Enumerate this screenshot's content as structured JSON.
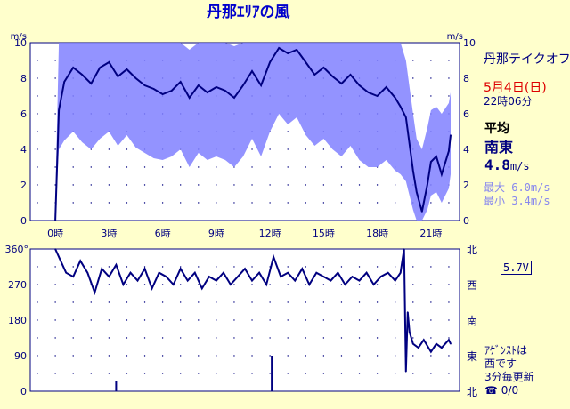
{
  "title": "丹那ｴﾘｱの風",
  "site_name": "丹那テイクオフ",
  "date": "5月4日(日)",
  "time": "22時06分",
  "average": {
    "label": "平均",
    "direction": "南東",
    "speed_value": "4.8",
    "speed_unit": "m/s"
  },
  "max_text": "最大 6.0m/s",
  "min_text": "最小 3.4m/s",
  "battery": "5.7V",
  "announce": {
    "line1": "ｱｹﾞﾝｽﾄは",
    "line2": "西です",
    "line3": "3分毎更新",
    "line4": "☎ 0/0"
  },
  "colors": {
    "avg_line": "#000080",
    "gust_band": "#8080ff",
    "grid": "#000080",
    "background": "#ffffcc"
  },
  "chart_data": [
    {
      "type": "line",
      "unit_left": "m/s",
      "unit_right": "m/s",
      "ylim": [
        0,
        10
      ],
      "y_ticks": [
        "0",
        "2",
        "4",
        "6",
        "8",
        "10"
      ],
      "x_ticks": [
        "0時",
        "3時",
        "6時",
        "9時",
        "12時",
        "15時",
        "18時",
        "21時"
      ],
      "x_tick_hours": [
        0,
        3,
        6,
        9,
        12,
        15,
        18,
        21
      ],
      "xlim_hours": [
        -1.4,
        22.6
      ],
      "series": [
        {
          "role": "average",
          "x": [
            0,
            0.2,
            0.5,
            1,
            1.5,
            2,
            2.5,
            3,
            3.5,
            4,
            4.5,
            5,
            5.5,
            6,
            6.5,
            7,
            7.5,
            8,
            8.5,
            9,
            9.5,
            10,
            10.5,
            11,
            11.5,
            12,
            12.5,
            13,
            13.5,
            14,
            14.5,
            15,
            15.5,
            16,
            16.5,
            17,
            17.5,
            18,
            18.5,
            19,
            19.3,
            19.6,
            20,
            20.2,
            20.5,
            20.8,
            21,
            21.3,
            21.6,
            22,
            22.1
          ],
          "y": [
            0,
            6.2,
            7.8,
            8.6,
            8.2,
            7.7,
            8.6,
            8.9,
            8.1,
            8.5,
            8,
            7.6,
            7.4,
            7.1,
            7.3,
            7.8,
            6.9,
            7.6,
            7.2,
            7.5,
            7.3,
            6.9,
            7.6,
            8.4,
            7.6,
            8.9,
            9.7,
            9.4,
            9.6,
            8.9,
            8.2,
            8.6,
            8.1,
            7.7,
            8.2,
            7.6,
            7.2,
            7,
            7.5,
            6.9,
            6.4,
            5.8,
            2.8,
            1.6,
            0.5,
            2,
            3.3,
            3.6,
            2.6,
            3.9,
            4.8
          ]
        },
        {
          "role": "gust_upper",
          "x": [
            0,
            0.2,
            0.5,
            1,
            1.5,
            2,
            2.5,
            3,
            3.5,
            4,
            4.5,
            5,
            5.5,
            6,
            6.5,
            7,
            7.5,
            8,
            8.5,
            9,
            9.5,
            10,
            10.5,
            11,
            11.5,
            12,
            12.5,
            13,
            13.5,
            14,
            14.5,
            15,
            15.5,
            16,
            16.5,
            17,
            17.5,
            18,
            18.5,
            19,
            19.3,
            19.6,
            20,
            20.2,
            20.5,
            20.8,
            21,
            21.3,
            21.6,
            22,
            22.1
          ],
          "y": [
            1,
            10,
            10,
            10,
            10,
            10,
            10,
            10,
            10,
            10,
            10,
            10,
            10,
            10,
            10,
            10,
            9.6,
            10,
            10,
            10,
            10,
            9.8,
            10,
            10,
            10,
            10,
            10,
            10,
            10,
            10,
            10,
            10,
            10,
            10,
            10,
            10,
            10,
            10,
            10,
            10,
            10,
            9,
            6,
            4.6,
            4,
            5.2,
            6.2,
            6.4,
            6,
            6.6,
            7.2
          ]
        },
        {
          "role": "gust_lower",
          "x": [
            0,
            0.2,
            0.5,
            1,
            1.5,
            2,
            2.5,
            3,
            3.5,
            4,
            4.5,
            5,
            5.5,
            6,
            6.5,
            7,
            7.5,
            8,
            8.5,
            9,
            9.5,
            10,
            10.5,
            11,
            11.5,
            12,
            12.5,
            13,
            13.5,
            14,
            14.5,
            15,
            15.5,
            16,
            16.5,
            17,
            17.5,
            18,
            18.5,
            19,
            19.3,
            19.6,
            20,
            20.2,
            20.5,
            20.8,
            21,
            21.3,
            21.6,
            22,
            22.1
          ],
          "y": [
            0,
            4,
            4.5,
            5,
            4.4,
            4,
            4.6,
            5,
            4.2,
            4.8,
            4.1,
            3.8,
            3.5,
            3.4,
            3.6,
            4,
            3,
            3.8,
            3.4,
            3.6,
            3.4,
            3,
            3.6,
            4.6,
            3.6,
            5,
            6,
            5.4,
            5.8,
            4.8,
            4.2,
            4.6,
            4,
            3.6,
            4.2,
            3.4,
            3,
            3,
            3.4,
            2.8,
            2.6,
            2.2,
            0.6,
            0,
            0,
            0.6,
            1.4,
            1.6,
            1,
            1.8,
            2.6
          ]
        }
      ]
    },
    {
      "type": "line",
      "unit_left": "360°",
      "ylim": [
        0,
        360
      ],
      "y_ticks": [
        "0",
        "90",
        "180",
        "270"
      ],
      "y_labels_right": [
        "北",
        "東",
        "南",
        "西",
        "北"
      ],
      "x_tick_hours": [
        0,
        3,
        6,
        9,
        12,
        15,
        18,
        21
      ],
      "xlim_hours": [
        -1.4,
        22.6
      ],
      "series": [
        {
          "role": "direction",
          "x": [
            0,
            0.3,
            0.6,
            1,
            1.4,
            1.8,
            2.2,
            2.6,
            3,
            3.4,
            3.8,
            4.2,
            4.6,
            5,
            5.4,
            5.8,
            6.2,
            6.6,
            7,
            7.4,
            7.8,
            8.2,
            8.6,
            9,
            9.4,
            9.8,
            10.2,
            10.6,
            11,
            11.4,
            11.8,
            12.2,
            12.6,
            13,
            13.4,
            13.8,
            14.2,
            14.6,
            15,
            15.4,
            15.8,
            16.2,
            16.6,
            17,
            17.4,
            17.8,
            18.2,
            18.6,
            19,
            19.3,
            19.5,
            19.6,
            19.7,
            19.8,
            20,
            20.3,
            20.6,
            21,
            21.3,
            21.6,
            22,
            22.1
          ],
          "y": [
            360,
            330,
            300,
            290,
            330,
            300,
            250,
            310,
            290,
            320,
            270,
            300,
            280,
            310,
            260,
            300,
            290,
            270,
            310,
            280,
            300,
            260,
            290,
            280,
            300,
            270,
            290,
            310,
            280,
            300,
            270,
            340,
            290,
            300,
            280,
            310,
            270,
            300,
            290,
            280,
            300,
            270,
            290,
            280,
            300,
            270,
            290,
            300,
            280,
            300,
            360,
            50,
            200,
            150,
            120,
            110,
            130,
            100,
            120,
            110,
            130,
            120
          ]
        }
      ],
      "spikes": [
        {
          "x": 3.4,
          "y": 25
        },
        {
          "x": 12.1,
          "y": 90
        },
        {
          "x": 20.5,
          "y": 0
        }
      ]
    }
  ]
}
